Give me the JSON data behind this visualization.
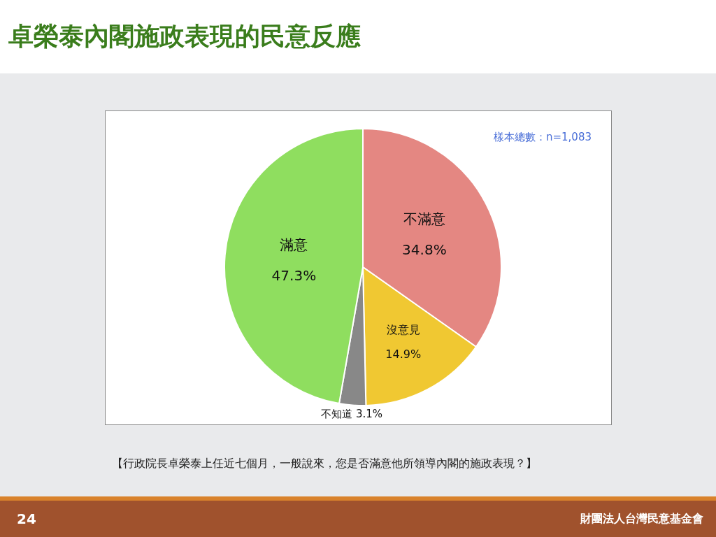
{
  "chart_data": {
    "type": "pie",
    "title": "卓榮泰內閣施政表現的民意反應",
    "subtitle": "樣本總數：n=1,083",
    "categories": [
      "不滿意",
      "沒意見",
      "不知道",
      "滿意"
    ],
    "values": [
      34.8,
      14.9,
      3.1,
      47.3
    ],
    "colors": [
      "#e48782",
      "#f0c832",
      "#888888",
      "#8fde5f"
    ],
    "value_labels": [
      "34.8%",
      "14.9%",
      "3.1%",
      "47.3%"
    ],
    "legend": false,
    "annotations": [
      "【行政院長卓榮泰上任近七個月，一般說來，您是否滿意他所領導內閣的施政表現？】",
      "24",
      "財團法人台灣民意基金會"
    ]
  }
}
